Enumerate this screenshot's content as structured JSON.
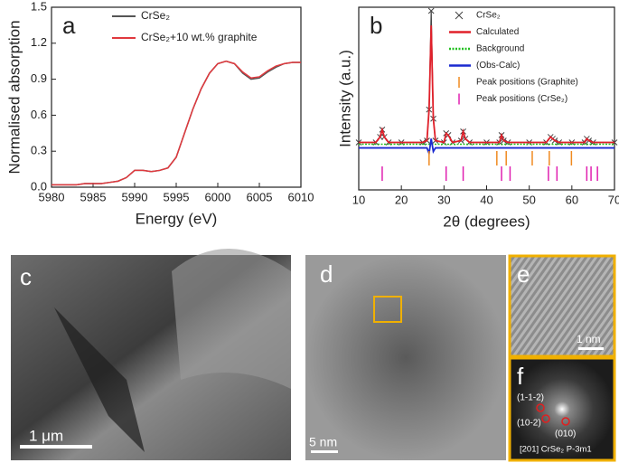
{
  "chart_data": [
    {
      "type": "line",
      "panel": "a",
      "xlabel": "Energy (eV)",
      "ylabel": "Normalised absorption",
      "x": [
        5980,
        5981,
        5982,
        5983,
        5984,
        5985,
        5986,
        5987,
        5988,
        5989,
        5990,
        5991,
        5992,
        5993,
        5994,
        5995,
        5996,
        5997,
        5998,
        5999,
        6000,
        6001,
        6002,
        6003,
        6004,
        6005,
        6006,
        6007,
        6008,
        6009,
        6010
      ],
      "series": [
        {
          "name": "CrSe₂",
          "color": "#555555",
          "values": [
            0.02,
            0.02,
            0.02,
            0.02,
            0.03,
            0.03,
            0.03,
            0.04,
            0.05,
            0.08,
            0.14,
            0.14,
            0.13,
            0.14,
            0.16,
            0.25,
            0.45,
            0.65,
            0.82,
            0.95,
            1.03,
            1.05,
            1.03,
            0.95,
            0.9,
            0.91,
            0.96,
            1.0,
            1.03,
            1.04,
            1.04
          ]
        },
        {
          "name": "CrSe₂+10 wt.% graphite",
          "color": "#e0393e",
          "values": [
            0.02,
            0.02,
            0.02,
            0.02,
            0.03,
            0.03,
            0.03,
            0.04,
            0.05,
            0.08,
            0.14,
            0.14,
            0.13,
            0.14,
            0.16,
            0.25,
            0.45,
            0.65,
            0.82,
            0.95,
            1.03,
            1.05,
            1.03,
            0.96,
            0.91,
            0.92,
            0.97,
            1.01,
            1.03,
            1.04,
            1.04
          ]
        }
      ],
      "xlim": [
        5980,
        6010
      ],
      "xticks": [
        5980,
        5985,
        5990,
        5995,
        6000,
        6005,
        6010
      ],
      "ylim": [
        0,
        1.5
      ],
      "yticks": [
        {
          "value": 0,
          "label": "0.0"
        },
        0.3,
        0.6,
        0.9,
        1.2,
        1.5
      ]
    },
    {
      "type": "xrd",
      "panel": "b",
      "xlabel": "2θ (degrees)",
      "ylabel": "Intensity (a.u.)",
      "x": [
        10,
        14,
        15,
        15.5,
        16,
        17,
        20,
        25,
        26,
        26.5,
        27,
        27.5,
        28,
        30,
        30.5,
        31,
        32,
        34,
        34.5,
        35,
        36,
        40,
        43,
        43.5,
        44,
        45,
        50,
        54,
        55,
        55.5,
        56,
        57,
        60,
        63,
        63.5,
        64,
        65,
        70
      ],
      "series": [
        {
          "name": "CrSe₂",
          "color": "#444444",
          "marker": "x",
          "values": [
            0.26,
            0.26,
            0.29,
            0.33,
            0.29,
            0.26,
            0.26,
            0.26,
            0.27,
            0.44,
            0.98,
            0.39,
            0.27,
            0.26,
            0.31,
            0.3,
            0.26,
            0.27,
            0.32,
            0.28,
            0.26,
            0.26,
            0.26,
            0.3,
            0.27,
            0.26,
            0.26,
            0.26,
            0.29,
            0.28,
            0.27,
            0.26,
            0.26,
            0.26,
            0.28,
            0.27,
            0.26,
            0.26
          ]
        },
        {
          "name": "Calculated",
          "color": "#e0202a",
          "values": [
            0.26,
            0.26,
            0.29,
            0.33,
            0.29,
            0.26,
            0.26,
            0.26,
            0.27,
            0.44,
            0.9,
            0.39,
            0.27,
            0.26,
            0.31,
            0.3,
            0.26,
            0.27,
            0.32,
            0.28,
            0.26,
            0.26,
            0.26,
            0.3,
            0.27,
            0.26,
            0.26,
            0.26,
            0.29,
            0.28,
            0.27,
            0.26,
            0.26,
            0.26,
            0.28,
            0.27,
            0.26,
            0.26
          ]
        },
        {
          "name": "Background",
          "color": "#22c020",
          "dash": true,
          "values": [
            0.25,
            0.25,
            0.25,
            0.25,
            0.25,
            0.25,
            0.25,
            0.25,
            0.25,
            0.25,
            0.25,
            0.25,
            0.25,
            0.25,
            0.25,
            0.25,
            0.25,
            0.25,
            0.25,
            0.25,
            0.25,
            0.25,
            0.25,
            0.25,
            0.25,
            0.25,
            0.25,
            0.25,
            0.25,
            0.25,
            0.25,
            0.25,
            0.25,
            0.25,
            0.25,
            0.25,
            0.25,
            0.25
          ]
        },
        {
          "name": "(Obs-Calc)",
          "color": "#1a2ad0",
          "values": [
            0.23,
            0.23,
            0.23,
            0.23,
            0.23,
            0.23,
            0.23,
            0.23,
            0.23,
            0.2,
            0.28,
            0.21,
            0.23,
            0.23,
            0.23,
            0.23,
            0.23,
            0.23,
            0.23,
            0.23,
            0.23,
            0.23,
            0.23,
            0.23,
            0.23,
            0.23,
            0.23,
            0.23,
            0.23,
            0.23,
            0.23,
            0.23,
            0.23,
            0.23,
            0.23,
            0.23,
            0.23,
            0.23
          ]
        }
      ],
      "peaks": [
        {
          "name": "Peak positions (Graphite)",
          "color": "#f08a20",
          "x": [
            26.5,
            42.4,
            44.6,
            50.7,
            54.7,
            59.9
          ]
        },
        {
          "name": "Peak positions (CrSe₂)",
          "color": "#e020b0",
          "x": [
            15.5,
            30.5,
            34.5,
            43.5,
            45.5,
            54.5,
            56.5,
            63.5,
            64.5,
            66
          ]
        }
      ],
      "xlim": [
        10,
        70
      ],
      "xticks": [
        10,
        20,
        30,
        40,
        50,
        60,
        70
      ],
      "ylim": [
        0,
        1
      ]
    }
  ],
  "images": [
    {
      "label": "c",
      "scale_bar": "1 μm"
    },
    {
      "label": "d",
      "scale_bar": "5 nm"
    },
    {
      "label": "e",
      "scale_bar": "1 nm"
    },
    {
      "label": "f",
      "annotations": [
        "(1-1-2)",
        "(10-2)",
        "(010)"
      ],
      "caption": "[201] CrSe₂ P-3m1"
    }
  ]
}
